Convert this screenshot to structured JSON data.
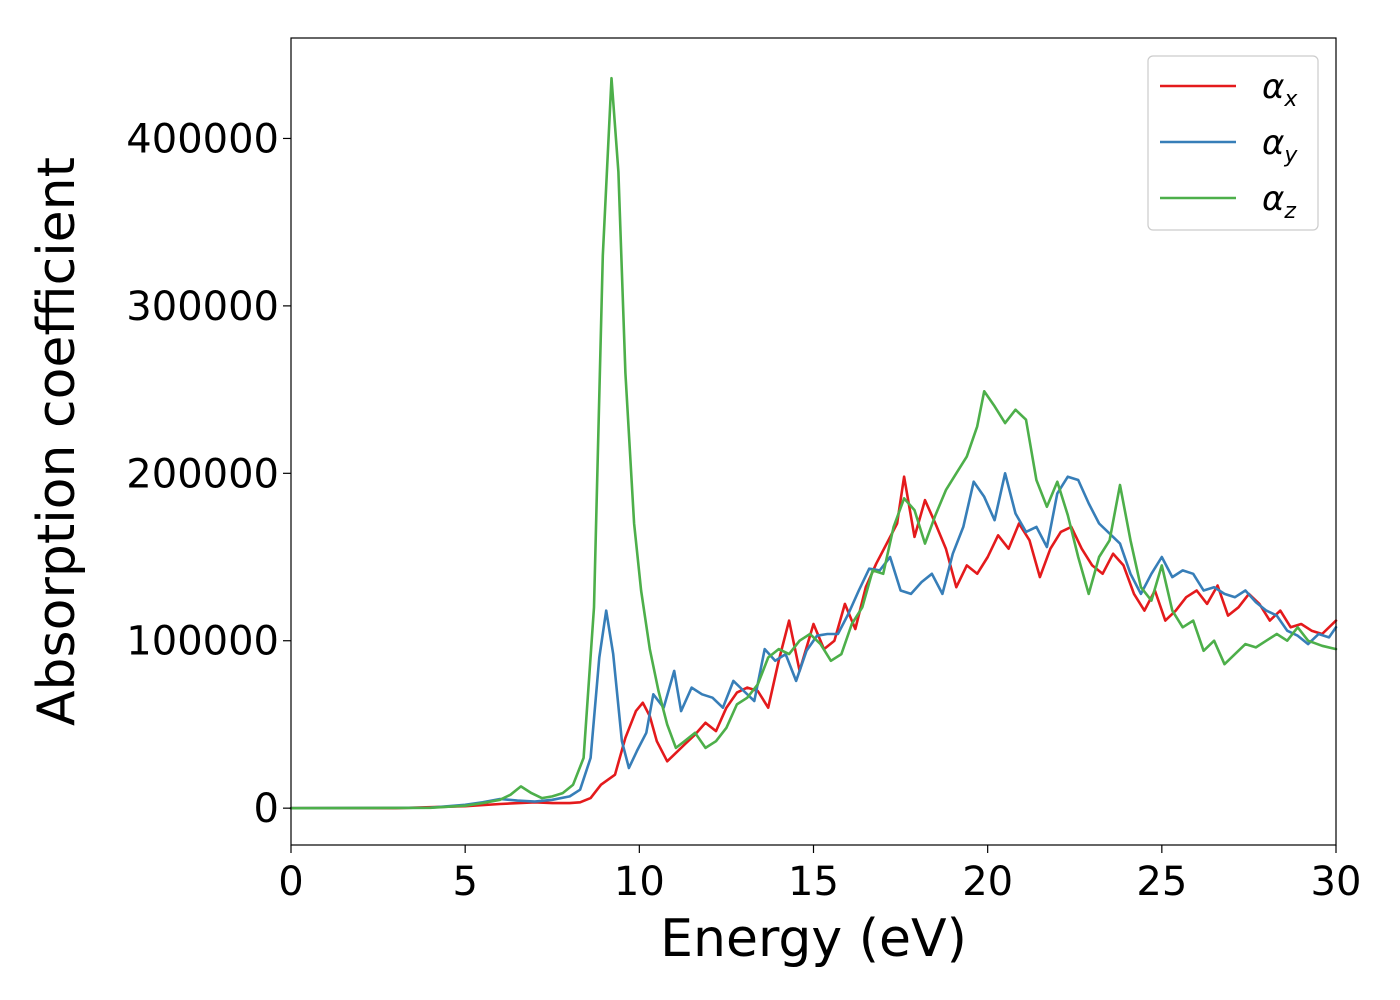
{
  "chart_data": {
    "type": "line",
    "title": "",
    "xlabel": "Energy (eV)",
    "ylabel": "Absorption coefficient",
    "xlim": [
      0,
      30
    ],
    "ylim": [
      -22000,
      460000
    ],
    "xticks": [
      0,
      5,
      10,
      15,
      20,
      25,
      30
    ],
    "yticks": [
      0,
      100000,
      200000,
      300000,
      400000
    ],
    "xtick_labels": [
      "0",
      "5",
      "10",
      "15",
      "20",
      "25",
      "30"
    ],
    "ytick_labels": [
      "0",
      "100000",
      "200000",
      "300000",
      "400000"
    ],
    "grid": false,
    "legend_position": "top-right",
    "series": [
      {
        "name": "αx",
        "symbol": "α",
        "subscript": "x",
        "color": "#e41a1c",
        "points": [
          [
            0,
            0
          ],
          [
            3,
            0
          ],
          [
            4,
            600
          ],
          [
            5,
            1200
          ],
          [
            6,
            2500
          ],
          [
            7,
            3500
          ],
          [
            7.5,
            3000
          ],
          [
            8,
            3000
          ],
          [
            8.3,
            3500
          ],
          [
            8.6,
            6000
          ],
          [
            8.9,
            14000
          ],
          [
            9.3,
            20000
          ],
          [
            9.6,
            42000
          ],
          [
            9.9,
            58000
          ],
          [
            10.1,
            63000
          ],
          [
            10.3,
            55000
          ],
          [
            10.5,
            40000
          ],
          [
            10.8,
            28000
          ],
          [
            11,
            32000
          ],
          [
            11.3,
            38000
          ],
          [
            11.6,
            44000
          ],
          [
            11.9,
            51000
          ],
          [
            12.2,
            46000
          ],
          [
            12.5,
            60000
          ],
          [
            12.8,
            69000
          ],
          [
            13.1,
            72000
          ],
          [
            13.4,
            70000
          ],
          [
            13.7,
            60000
          ],
          [
            14,
            88000
          ],
          [
            14.3,
            112000
          ],
          [
            14.6,
            82000
          ],
          [
            15,
            110000
          ],
          [
            15.3,
            95000
          ],
          [
            15.6,
            100000
          ],
          [
            15.9,
            122000
          ],
          [
            16.2,
            107000
          ],
          [
            16.5,
            132000
          ],
          [
            16.8,
            146000
          ],
          [
            17.1,
            158000
          ],
          [
            17.4,
            170000
          ],
          [
            17.6,
            198000
          ],
          [
            17.9,
            162000
          ],
          [
            18.2,
            184000
          ],
          [
            18.5,
            170000
          ],
          [
            18.8,
            155000
          ],
          [
            19.1,
            132000
          ],
          [
            19.4,
            145000
          ],
          [
            19.7,
            140000
          ],
          [
            20,
            150000
          ],
          [
            20.3,
            163000
          ],
          [
            20.6,
            155000
          ],
          [
            20.9,
            170000
          ],
          [
            21.2,
            160000
          ],
          [
            21.5,
            138000
          ],
          [
            21.8,
            155000
          ],
          [
            22.1,
            165000
          ],
          [
            22.4,
            168000
          ],
          [
            22.7,
            155000
          ],
          [
            23,
            145000
          ],
          [
            23.3,
            140000
          ],
          [
            23.6,
            152000
          ],
          [
            23.9,
            145000
          ],
          [
            24.2,
            128000
          ],
          [
            24.5,
            118000
          ],
          [
            24.8,
            130000
          ],
          [
            25.1,
            112000
          ],
          [
            25.4,
            118000
          ],
          [
            25.7,
            126000
          ],
          [
            26,
            130000
          ],
          [
            26.3,
            122000
          ],
          [
            26.6,
            133000
          ],
          [
            26.9,
            115000
          ],
          [
            27.2,
            120000
          ],
          [
            27.5,
            128000
          ],
          [
            27.8,
            122000
          ],
          [
            28.1,
            112000
          ],
          [
            28.4,
            118000
          ],
          [
            28.7,
            108000
          ],
          [
            29,
            110000
          ],
          [
            29.3,
            106000
          ],
          [
            29.6,
            104000
          ],
          [
            30,
            112000
          ]
        ]
      },
      {
        "name": "αy",
        "symbol": "α",
        "subscript": "y",
        "color": "#377eb8",
        "points": [
          [
            0,
            0
          ],
          [
            4,
            300
          ],
          [
            5,
            2000
          ],
          [
            5.5,
            3500
          ],
          [
            6,
            5500
          ],
          [
            6.5,
            4500
          ],
          [
            7,
            4000
          ],
          [
            7.5,
            5000
          ],
          [
            8,
            7000
          ],
          [
            8.3,
            11000
          ],
          [
            8.6,
            30000
          ],
          [
            8.85,
            90000
          ],
          [
            9.05,
            118000
          ],
          [
            9.25,
            92000
          ],
          [
            9.5,
            40000
          ],
          [
            9.7,
            24000
          ],
          [
            9.95,
            35000
          ],
          [
            10.2,
            45000
          ],
          [
            10.4,
            68000
          ],
          [
            10.7,
            60000
          ],
          [
            11,
            82000
          ],
          [
            11.2,
            58000
          ],
          [
            11.5,
            72000
          ],
          [
            11.8,
            68000
          ],
          [
            12.1,
            66000
          ],
          [
            12.4,
            60000
          ],
          [
            12.7,
            76000
          ],
          [
            13,
            70000
          ],
          [
            13.3,
            64000
          ],
          [
            13.6,
            95000
          ],
          [
            13.9,
            88000
          ],
          [
            14.2,
            92000
          ],
          [
            14.5,
            76000
          ],
          [
            14.8,
            94000
          ],
          [
            15.1,
            103000
          ],
          [
            15.4,
            104000
          ],
          [
            15.7,
            104000
          ],
          [
            16,
            116000
          ],
          [
            16.3,
            130000
          ],
          [
            16.6,
            143000
          ],
          [
            16.9,
            142000
          ],
          [
            17.2,
            150000
          ],
          [
            17.5,
            130000
          ],
          [
            17.8,
            128000
          ],
          [
            18.1,
            135000
          ],
          [
            18.4,
            140000
          ],
          [
            18.7,
            128000
          ],
          [
            19,
            152000
          ],
          [
            19.3,
            168000
          ],
          [
            19.6,
            195000
          ],
          [
            19.9,
            186000
          ],
          [
            20.2,
            172000
          ],
          [
            20.5,
            200000
          ],
          [
            20.8,
            176000
          ],
          [
            21.1,
            165000
          ],
          [
            21.4,
            168000
          ],
          [
            21.7,
            156000
          ],
          [
            22,
            188000
          ],
          [
            22.3,
            198000
          ],
          [
            22.6,
            196000
          ],
          [
            22.9,
            182000
          ],
          [
            23.2,
            170000
          ],
          [
            23.5,
            164000
          ],
          [
            23.8,
            158000
          ],
          [
            24.1,
            140000
          ],
          [
            24.4,
            128000
          ],
          [
            24.7,
            140000
          ],
          [
            25,
            150000
          ],
          [
            25.3,
            138000
          ],
          [
            25.6,
            142000
          ],
          [
            25.9,
            140000
          ],
          [
            26.2,
            130000
          ],
          [
            26.5,
            132000
          ],
          [
            26.8,
            128000
          ],
          [
            27.1,
            126000
          ],
          [
            27.4,
            130000
          ],
          [
            27.7,
            123000
          ],
          [
            28,
            118000
          ],
          [
            28.3,
            115000
          ],
          [
            28.6,
            106000
          ],
          [
            28.9,
            103000
          ],
          [
            29.2,
            98000
          ],
          [
            29.5,
            104000
          ],
          [
            29.8,
            102000
          ],
          [
            30,
            108000
          ]
        ]
      },
      {
        "name": "αz",
        "symbol": "α",
        "subscript": "z",
        "color": "#4daf4a",
        "points": [
          [
            0,
            0
          ],
          [
            4,
            200
          ],
          [
            5,
            1500
          ],
          [
            5.5,
            3000
          ],
          [
            6,
            5000
          ],
          [
            6.3,
            8000
          ],
          [
            6.6,
            13000
          ],
          [
            6.9,
            9000
          ],
          [
            7.2,
            6000
          ],
          [
            7.5,
            7000
          ],
          [
            7.8,
            9000
          ],
          [
            8.1,
            14000
          ],
          [
            8.4,
            30000
          ],
          [
            8.7,
            120000
          ],
          [
            8.95,
            330000
          ],
          [
            9.2,
            436000
          ],
          [
            9.4,
            380000
          ],
          [
            9.6,
            260000
          ],
          [
            9.85,
            170000
          ],
          [
            10.05,
            130000
          ],
          [
            10.3,
            95000
          ],
          [
            10.55,
            70000
          ],
          [
            10.8,
            50000
          ],
          [
            11.05,
            36000
          ],
          [
            11.3,
            40000
          ],
          [
            11.6,
            45000
          ],
          [
            11.9,
            36000
          ],
          [
            12.2,
            40000
          ],
          [
            12.5,
            48000
          ],
          [
            12.8,
            62000
          ],
          [
            13.1,
            66000
          ],
          [
            13.4,
            74000
          ],
          [
            13.7,
            90000
          ],
          [
            14,
            95000
          ],
          [
            14.3,
            92000
          ],
          [
            14.6,
            100000
          ],
          [
            14.9,
            104000
          ],
          [
            15.2,
            98000
          ],
          [
            15.5,
            88000
          ],
          [
            15.8,
            92000
          ],
          [
            16.1,
            110000
          ],
          [
            16.4,
            120000
          ],
          [
            16.7,
            142000
          ],
          [
            17,
            140000
          ],
          [
            17.3,
            168000
          ],
          [
            17.6,
            185000
          ],
          [
            17.9,
            178000
          ],
          [
            18.2,
            158000
          ],
          [
            18.5,
            175000
          ],
          [
            18.8,
            190000
          ],
          [
            19.1,
            200000
          ],
          [
            19.4,
            210000
          ],
          [
            19.7,
            228000
          ],
          [
            19.9,
            249000
          ],
          [
            20.2,
            240000
          ],
          [
            20.5,
            230000
          ],
          [
            20.8,
            238000
          ],
          [
            21.1,
            232000
          ],
          [
            21.4,
            196000
          ],
          [
            21.7,
            180000
          ],
          [
            22,
            195000
          ],
          [
            22.3,
            175000
          ],
          [
            22.6,
            150000
          ],
          [
            22.9,
            128000
          ],
          [
            23.2,
            150000
          ],
          [
            23.5,
            160000
          ],
          [
            23.8,
            193000
          ],
          [
            24.1,
            160000
          ],
          [
            24.4,
            132000
          ],
          [
            24.7,
            124000
          ],
          [
            25,
            145000
          ],
          [
            25.3,
            118000
          ],
          [
            25.6,
            108000
          ],
          [
            25.9,
            112000
          ],
          [
            26.2,
            94000
          ],
          [
            26.5,
            100000
          ],
          [
            26.8,
            86000
          ],
          [
            27.1,
            92000
          ],
          [
            27.4,
            98000
          ],
          [
            27.7,
            96000
          ],
          [
            28,
            100000
          ],
          [
            28.3,
            104000
          ],
          [
            28.6,
            100000
          ],
          [
            28.9,
            108000
          ],
          [
            29.2,
            100000
          ],
          [
            29.6,
            97000
          ],
          [
            30,
            95000
          ]
        ]
      }
    ]
  }
}
